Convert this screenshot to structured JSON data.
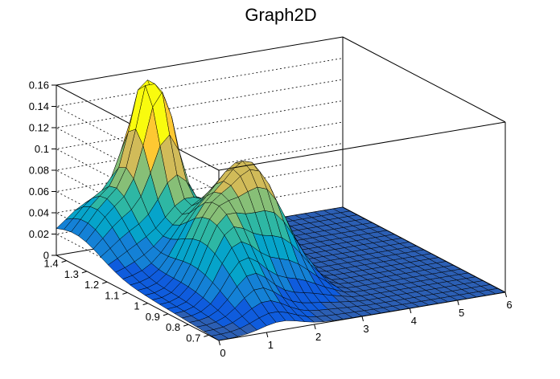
{
  "chart_data": {
    "type": "surface",
    "title": "Graph2D",
    "xlabel": "",
    "ylabel": "",
    "zlabel": "",
    "xlim": [
      0,
      6
    ],
    "ylim": [
      0.65,
      1.45
    ],
    "zlim": [
      0,
      0.16
    ],
    "x_ticks": [
      "0",
      "1",
      "2",
      "3",
      "4",
      "5",
      "6"
    ],
    "y_ticks": [
      "0.7",
      "0.8",
      "0.9",
      "1",
      "1.1",
      "1.2",
      "1.3",
      "1.4"
    ],
    "z_ticks": [
      "0",
      "0.02",
      "0.04",
      "0.06",
      "0.08",
      "0.1",
      "0.12",
      "0.14",
      "0.16"
    ],
    "grid": true,
    "colormap": [
      "#352a87",
      "#0f5cdd",
      "#1481d6",
      "#06a4ca",
      "#2eb7a4",
      "#87bf77",
      "#d1bb59",
      "#fec832",
      "#f9fb0e"
    ],
    "surface_color": "#2c5fb4",
    "mesh_color": "#000000"
  }
}
